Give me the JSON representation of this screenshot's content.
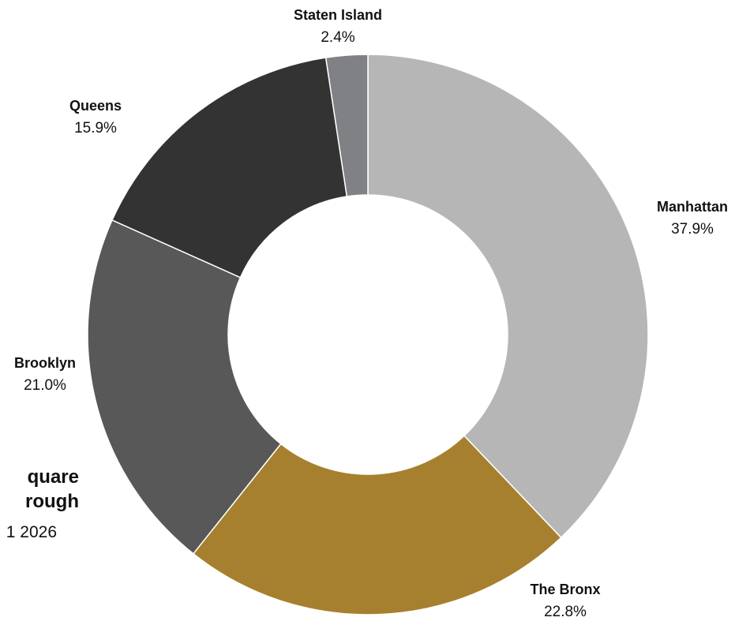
{
  "chart_data": {
    "type": "pie",
    "donut": true,
    "title_lines": [
      "quare",
      "rough"
    ],
    "subtitle": "1 2026",
    "slices": [
      {
        "label": "Manhattan",
        "value": 37.9,
        "display": "37.9%",
        "color": "#b5b6b5"
      },
      {
        "label": "The Bronx",
        "value": 22.8,
        "display": "22.8%",
        "color": "#a6802e"
      },
      {
        "label": "Brooklyn",
        "value": 21.0,
        "display": "21.0%",
        "color": "#585858"
      },
      {
        "label": "Queens",
        "value": 15.9,
        "display": "15.9%",
        "color": "#333333"
      },
      {
        "label": "Staten Island",
        "value": 2.4,
        "display": "2.4%",
        "color": "#808184"
      }
    ]
  }
}
